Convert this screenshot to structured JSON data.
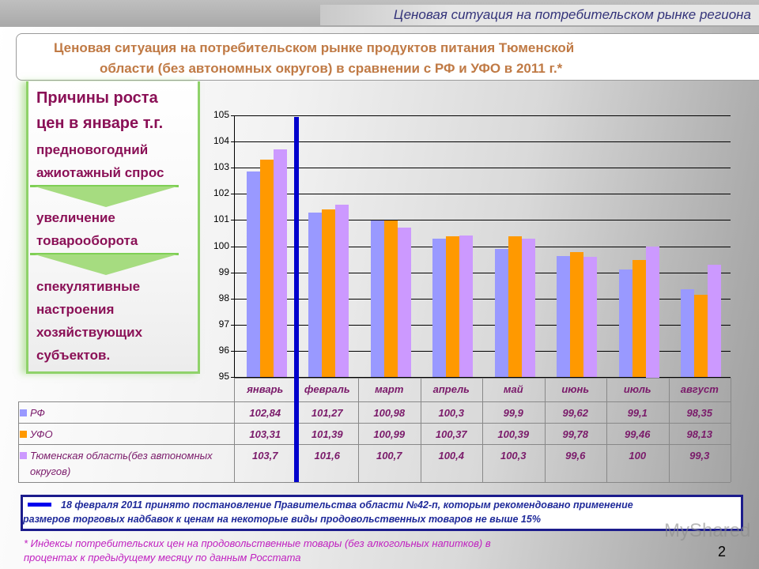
{
  "header": {
    "section_title": "Ценовая ситуация на потребительском рынке региона"
  },
  "slide_title": {
    "line1": "Ценовая ситуация на потребительском рынке продуктов питания Тюменской",
    "line2": "области  (без автономных округов) в сравнении с РФ и УФО в 2011 г.*"
  },
  "reasons": {
    "heading1": "Причины роста",
    "heading2": "цен в январе т.г.",
    "items": [
      [
        "предновогодний",
        "ажиотажный спрос"
      ],
      [
        "увеличение",
        "товарооборота"
      ],
      [
        "спекулятивные",
        "настроения",
        "хозяйствующих",
        "субъектов."
      ]
    ]
  },
  "colors": {
    "rf": "#9999ff",
    "ufo": "#ff9900",
    "tyumen": "#cc99ff",
    "marker_line": "#0000cc",
    "text_magenta": "#7a1a6a",
    "title_orange": "#c07a45"
  },
  "chart_data": {
    "type": "bar",
    "title": "Ценовая ситуация на потребительском рынке продуктов питания Тюменской области (без автономных округов) в сравнении с РФ и УФО в 2011 г.*",
    "xlabel": "",
    "ylabel": "",
    "ylim": [
      95,
      105
    ],
    "yticks": [
      95,
      96,
      97,
      98,
      99,
      100,
      101,
      102,
      103,
      104,
      105
    ],
    "grid": true,
    "legend_position": "table-below",
    "categories": [
      "январь",
      "февраль",
      "март",
      "апрель",
      "май",
      "июнь",
      "июль",
      "август"
    ],
    "series": [
      {
        "name": "РФ",
        "color": "#9999ff",
        "values": [
          102.84,
          101.27,
          100.98,
          100.3,
          99.9,
          99.62,
          99.1,
          98.35
        ],
        "labels": [
          "102,84",
          "101,27",
          "100,98",
          "100,3",
          "99,9",
          "99,62",
          "99,1",
          "98,35"
        ]
      },
      {
        "name": "УФО",
        "color": "#ff9900",
        "values": [
          103.31,
          101.39,
          100.99,
          100.37,
          100.39,
          99.78,
          99.46,
          98.13
        ],
        "labels": [
          "103,31",
          "101,39",
          "100,99",
          "100,37",
          "100,39",
          "99,78",
          "99,46",
          "98,13"
        ]
      },
      {
        "name": "Тюменская область(без автономных округов)",
        "color": "#cc99ff",
        "values": [
          103.7,
          101.6,
          100.7,
          100.4,
          100.3,
          99.6,
          100,
          99.3
        ],
        "labels": [
          "103,7",
          "101,6",
          "100,7",
          "100,4",
          "100,3",
          "99,6",
          "100",
          "99,3"
        ]
      }
    ],
    "annotations": [
      "Вертикальная синяя линия между январём и февралём — 18 февраля 2011 (постановление №42-п)"
    ]
  },
  "table": {
    "legend_labels": [
      "РФ",
      "УФО",
      "Тюменская область(без автономных",
      "округов)"
    ]
  },
  "note": {
    "line1": "18 февраля 2011 принято постановление Правительства области №42-п, которым рекомендовано применение",
    "line2": "размеров торговых надбавок к ценам на некоторые виды продовольственных товаров не выше 15%"
  },
  "footnote": {
    "line1": "* Индексы потребительских цен на продовольственные товары (без алкогольных напитков) в",
    "line2": "процентах к предыдущему месяцу по данным Росстата"
  },
  "page_number": "2",
  "watermark": "MyShared"
}
